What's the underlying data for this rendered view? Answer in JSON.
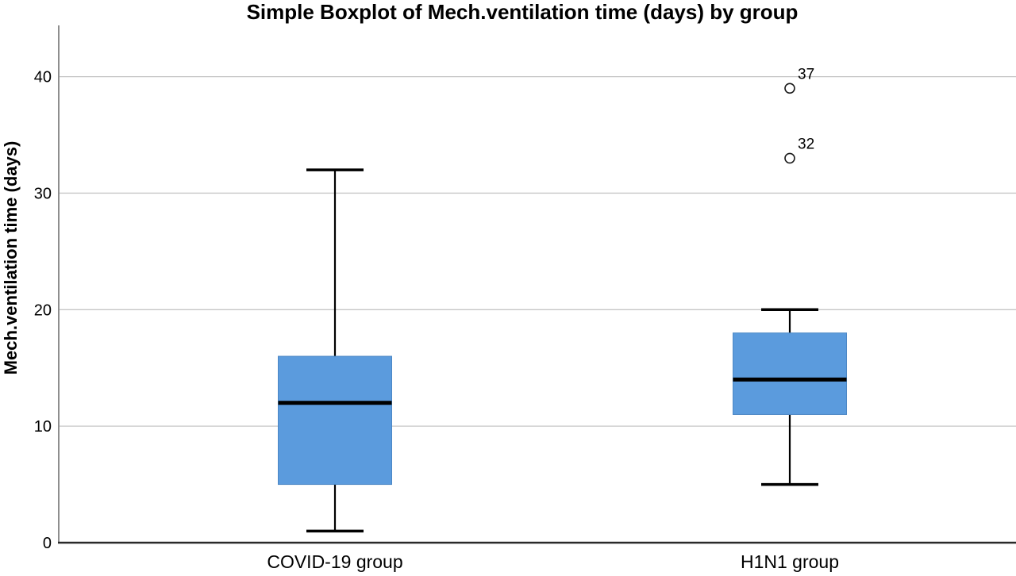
{
  "chart_data": {
    "type": "boxplot",
    "title": "Simple Boxplot of Mech.ventilation time (days) by group",
    "ylabel": "Mech.ventilation time (days)",
    "xlabel": "",
    "categories": [
      "COVID-19 group",
      "H1N1 group"
    ],
    "yticks": [
      0,
      10,
      20,
      30,
      40
    ],
    "ylim": [
      0,
      44.4
    ],
    "grid": "horizontal-gridlines",
    "legend": "none",
    "series": [
      {
        "category": "COVID-19 group",
        "whisker_low": 1,
        "q1": 5,
        "median": 12,
        "q3": 16,
        "whisker_high": 32,
        "outliers": []
      },
      {
        "category": "H1N1 group",
        "whisker_low": 5,
        "q1": 11,
        "median": 14,
        "q3": 18,
        "whisker_high": 20,
        "outliers": [
          {
            "value": 39,
            "label": "37"
          },
          {
            "value": 33,
            "label": "32"
          }
        ]
      }
    ],
    "colors": {
      "box_fill": "#5B9BDD",
      "box_edge": "#4C87C5",
      "median": "#000000",
      "whisker": "#000000",
      "gridline": "#C6C6C6",
      "y_axis_line": "#8E8E8E",
      "x_axis_line": "#2A2A2A",
      "outlier_stroke": "#1A1A1A",
      "text": "#000000"
    }
  }
}
